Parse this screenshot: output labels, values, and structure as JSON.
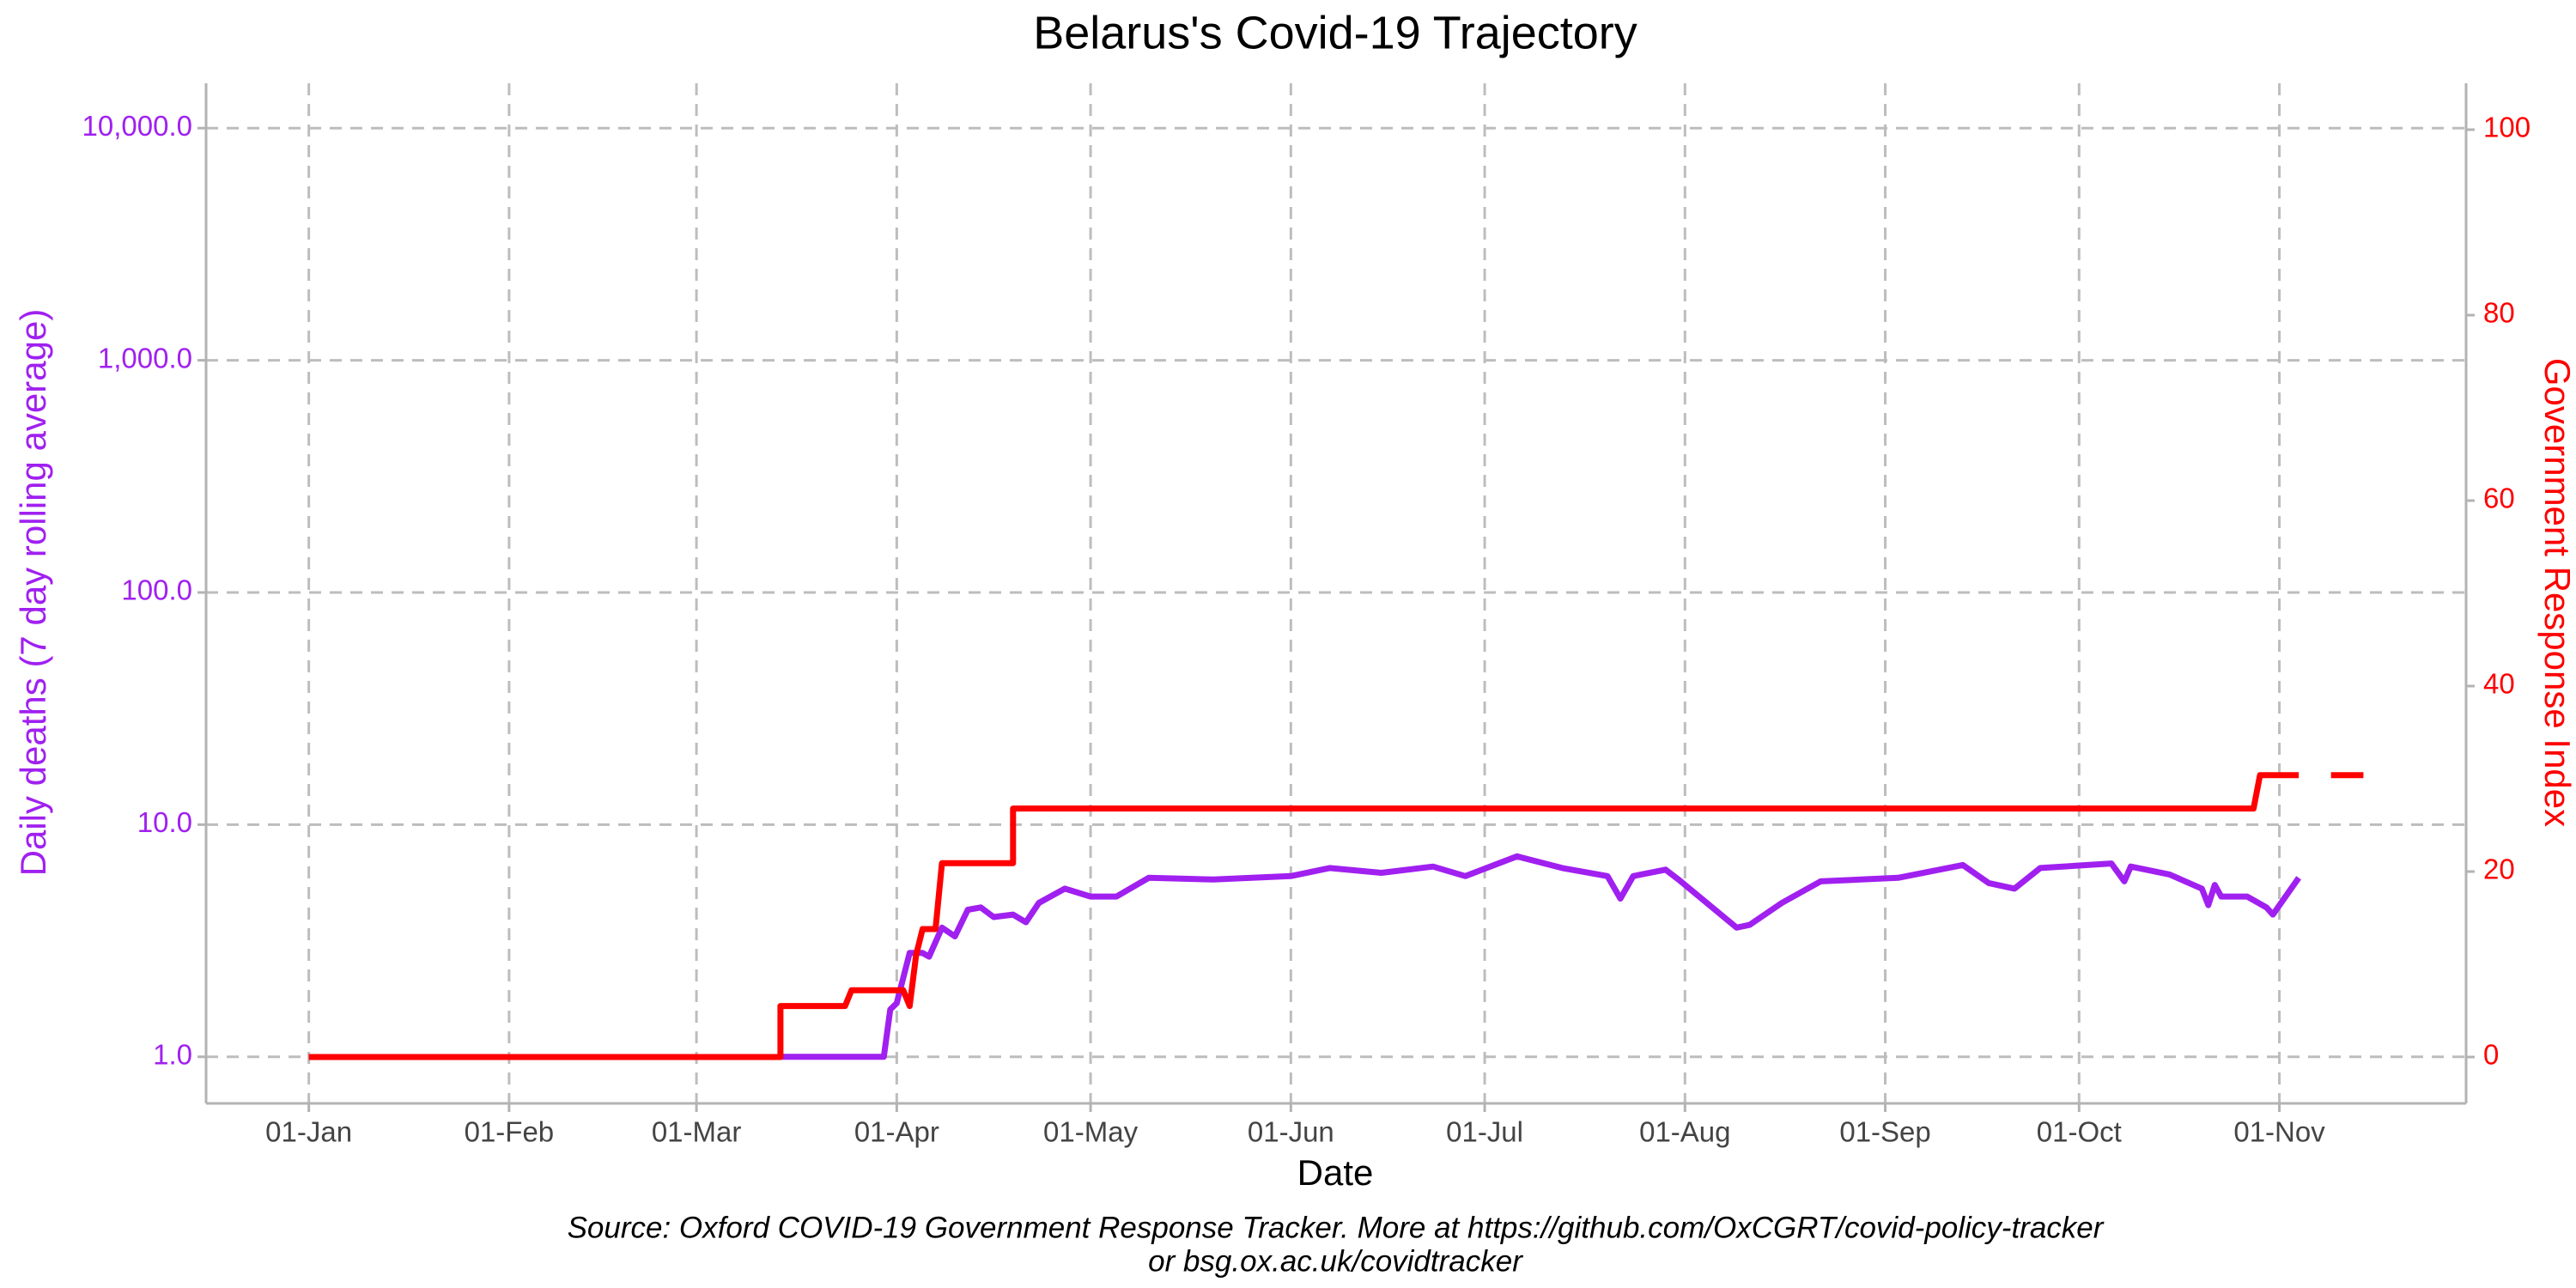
{
  "chart_data": {
    "type": "line",
    "title": "Belarus's Covid-19 Trajectory",
    "xlabel": "Date",
    "ylabel": "Daily deaths (7 day rolling average)",
    "y2label": "Government Response Index",
    "caption": [
      "Source: Oxford COVID-19 Government Response Tracker. More at https://github.com/OxCGRT/covid-policy-tracker",
      "or bsg.ox.ac.uk/covidtracker"
    ],
    "log_y": true,
    "grid": true,
    "ylabel_color": "#a020f0",
    "y2label_color": "#ff0000",
    "xticks": [
      "01-Jan",
      "01-Feb",
      "01-Mar",
      "01-Apr",
      "01-May",
      "01-Jun",
      "01-Jul",
      "01-Aug",
      "01-Sep",
      "01-Oct",
      "01-Nov"
    ],
    "ylim": [
      0.63,
      15600
    ],
    "yticks": [
      {
        "value": 1,
        "label": "1.0"
      },
      {
        "value": 10,
        "label": "10.0"
      },
      {
        "value": 100,
        "label": "100.0"
      },
      {
        "value": 1000,
        "label": "1,000.0"
      },
      {
        "value": 10000,
        "label": "10,000.0"
      }
    ],
    "y2lim": [
      -5,
      105
    ],
    "y2ticks": [
      0,
      20,
      40,
      60,
      80,
      100
    ],
    "series": [
      {
        "color": "#a020f0",
        "axis": "y",
        "x": [
          "14-Mar",
          "30-Mar",
          "31-Mar",
          "01-Apr",
          "03-Apr",
          "05-Apr",
          "06-Apr",
          "08-Apr",
          "10-Apr",
          "12-Apr",
          "14-Apr",
          "16-Apr",
          "19-Apr",
          "21-Apr",
          "23-Apr",
          "27-Apr",
          "01-May",
          "05-May",
          "10-May",
          "20-May",
          "01-Jun",
          "07-Jun",
          "15-Jun",
          "23-Jun",
          "28-Jun",
          "06-Jul",
          "13-Jul",
          "20-Jul",
          "22-Jul",
          "24-Jul",
          "29-Jul",
          "31-Jul",
          "09-Aug",
          "11-Aug",
          "16-Aug",
          "22-Aug",
          "03-Sep",
          "13-Sep",
          "17-Sep",
          "21-Sep",
          "25-Sep",
          "06-Oct",
          "08-Oct",
          "09-Oct",
          "15-Oct",
          "20-Oct",
          "21-Oct",
          "22-Oct",
          "23-Oct",
          "27-Oct",
          "30-Oct",
          "31-Oct",
          "04-Nov"
        ],
        "values": [
          1.0,
          1.0,
          1.6,
          1.7,
          2.8,
          2.8,
          2.7,
          3.6,
          3.3,
          4.3,
          4.4,
          4.0,
          4.1,
          3.8,
          4.6,
          5.3,
          4.9,
          4.9,
          5.9,
          5.8,
          6.0,
          6.5,
          6.2,
          6.6,
          6.0,
          7.3,
          6.5,
          6.0,
          4.8,
          6.0,
          6.4,
          5.8,
          3.6,
          3.7,
          4.6,
          5.7,
          5.9,
          6.7,
          5.6,
          5.3,
          6.5,
          6.8,
          5.7,
          6.6,
          6.1,
          5.3,
          4.5,
          5.5,
          4.9,
          4.9,
          4.4,
          4.1,
          5.9
        ]
      },
      {
        "color": "#ff0000",
        "axis": "y2",
        "x": [
          "01-Jan",
          "14-Mar",
          "14-Mar",
          "24-Mar",
          "25-Mar",
          "02-Apr",
          "03-Apr",
          "04-Apr",
          "05-Apr",
          "07-Apr",
          "08-Apr",
          "19-Apr",
          "19-Apr",
          "28-Oct",
          "29-Oct",
          "04-Nov",
          null,
          "09-Nov",
          "14-Nov"
        ],
        "values": [
          0,
          0,
          5.5,
          5.5,
          7.2,
          7.2,
          5.5,
          11,
          13.8,
          13.8,
          20.9,
          20.9,
          26.8,
          26.8,
          30.4,
          30.4,
          null,
          30.4,
          30.4
        ]
      }
    ]
  }
}
